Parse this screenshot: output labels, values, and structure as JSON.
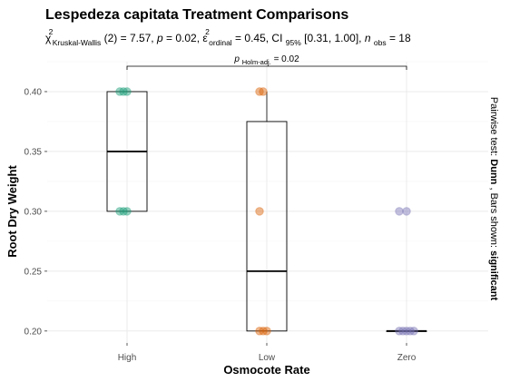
{
  "chart_data": {
    "type": "box",
    "title": "Lespedeza capitata Treatment Comparisons",
    "subtitle": {
      "chi": "χ",
      "chi_sup": "2",
      "chi_sub": "Kruskal-Wallis",
      "df": "(2) = 7.57, ",
      "p_sym": "p",
      "p_val": " = 0.02, ",
      "eps": "ε",
      "eps_sup": "2",
      "eps_sub": "ordinal",
      "eps_val": " = 0.45, CI",
      "ci_sub": "95%",
      "ci_val": " [0.31, 1.00], ",
      "n_sym": "n",
      "n_sub": "obs",
      "n_val": " = 18"
    },
    "xlabel": "Osmocote Rate",
    "ylabel": "Root Dry Weight",
    "caption": {
      "prefix": "Pairwise test: ",
      "test": "Dunn",
      "middle": ", Bars shown: ",
      "shown": "significant"
    },
    "categories": [
      "High",
      "Low",
      "Zero"
    ],
    "ylim": [
      0.19,
      0.425
    ],
    "yticks": [
      0.2,
      0.25,
      0.3,
      0.35,
      0.4
    ],
    "ytick_labels": [
      "0.20",
      "0.25",
      "0.30",
      "0.35",
      "0.40"
    ],
    "colors": [
      "#1b9e77",
      "#d95f02",
      "#7570b3"
    ],
    "boxes": [
      {
        "category": "High",
        "min": 0.3,
        "q1": 0.3,
        "median": 0.35,
        "q3": 0.4,
        "max": 0.4
      },
      {
        "category": "Low",
        "min": 0.2,
        "q1": 0.2,
        "median": 0.25,
        "q3": 0.375,
        "max": 0.4
      },
      {
        "category": "Zero",
        "min": 0.2,
        "q1": 0.2,
        "median": 0.2,
        "q3": 0.2,
        "max": 0.2
      }
    ],
    "points": [
      {
        "category": "High",
        "values": [
          0.4,
          0.4,
          0.4,
          0.3,
          0.3,
          0.3
        ]
      },
      {
        "category": "Low",
        "values": [
          0.4,
          0.4,
          0.3,
          0.2,
          0.2,
          0.2
        ]
      },
      {
        "category": "Zero",
        "values": [
          0.3,
          0.2,
          0.2,
          0.2,
          0.2,
          0.2
        ]
      }
    ],
    "outliers": [
      {
        "category": "Zero",
        "value": 0.3
      }
    ],
    "comparison": {
      "from": "High",
      "to": "Zero",
      "label_p": "p",
      "label_sub": "Holm-adj.",
      "label_val": " = 0.02"
    },
    "grid": true
  }
}
